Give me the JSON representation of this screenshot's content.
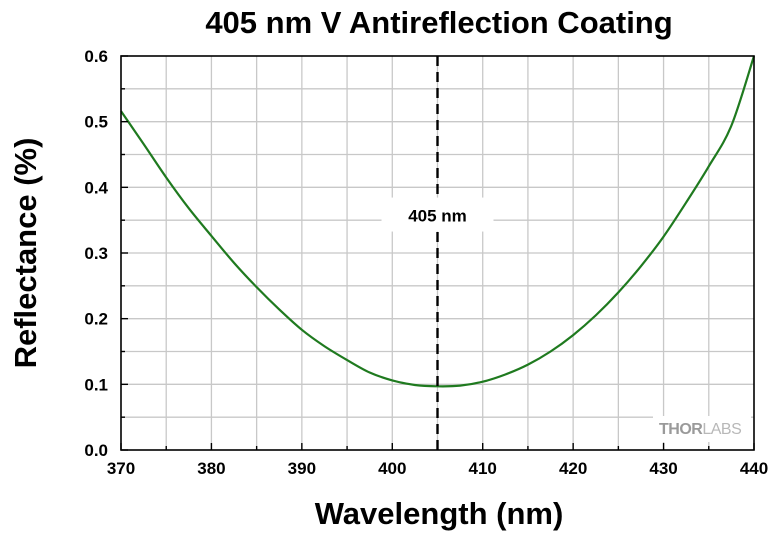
{
  "chart_data": {
    "type": "line",
    "title": "405 nm V Antireflection Coating",
    "xlabel": "Wavelength (nm)",
    "ylabel": "Reflectance (%)",
    "xlim": [
      370,
      440
    ],
    "ylim": [
      0.0,
      0.6
    ],
    "x_ticks": [
      "370",
      "380",
      "390",
      "400",
      "410",
      "420",
      "430",
      "440"
    ],
    "y_ticks": [
      "0.0",
      "0.1",
      "0.2",
      "0.3",
      "0.4",
      "0.5",
      "0.6"
    ],
    "grid": true,
    "legend": "none",
    "series": [
      {
        "color": "#1f7a1f",
        "x": [
          370,
          372.5,
          375,
          377.5,
          380,
          382.5,
          385,
          387.5,
          390,
          392.5,
          395,
          397.5,
          400,
          402.5,
          405,
          407.5,
          410,
          412.5,
          415,
          417.5,
          420,
          422.5,
          425,
          427.5,
          430,
          432.5,
          435,
          437.5,
          440
        ],
        "y": [
          0.516,
          0.466,
          0.415,
          0.368,
          0.326,
          0.285,
          0.248,
          0.214,
          0.183,
          0.158,
          0.137,
          0.118,
          0.106,
          0.099,
          0.097,
          0.098,
          0.104,
          0.115,
          0.13,
          0.15,
          0.175,
          0.205,
          0.24,
          0.28,
          0.325,
          0.377,
          0.432,
          0.494,
          0.6
        ]
      }
    ],
    "annotations": [
      {
        "label": "405 nm",
        "x": 405,
        "style": "dashed-vertical-line",
        "color": "#000000"
      }
    ]
  },
  "watermark": {
    "part1": "THOR",
    "part2": "LABS",
    "color": "#9a9a9a"
  }
}
